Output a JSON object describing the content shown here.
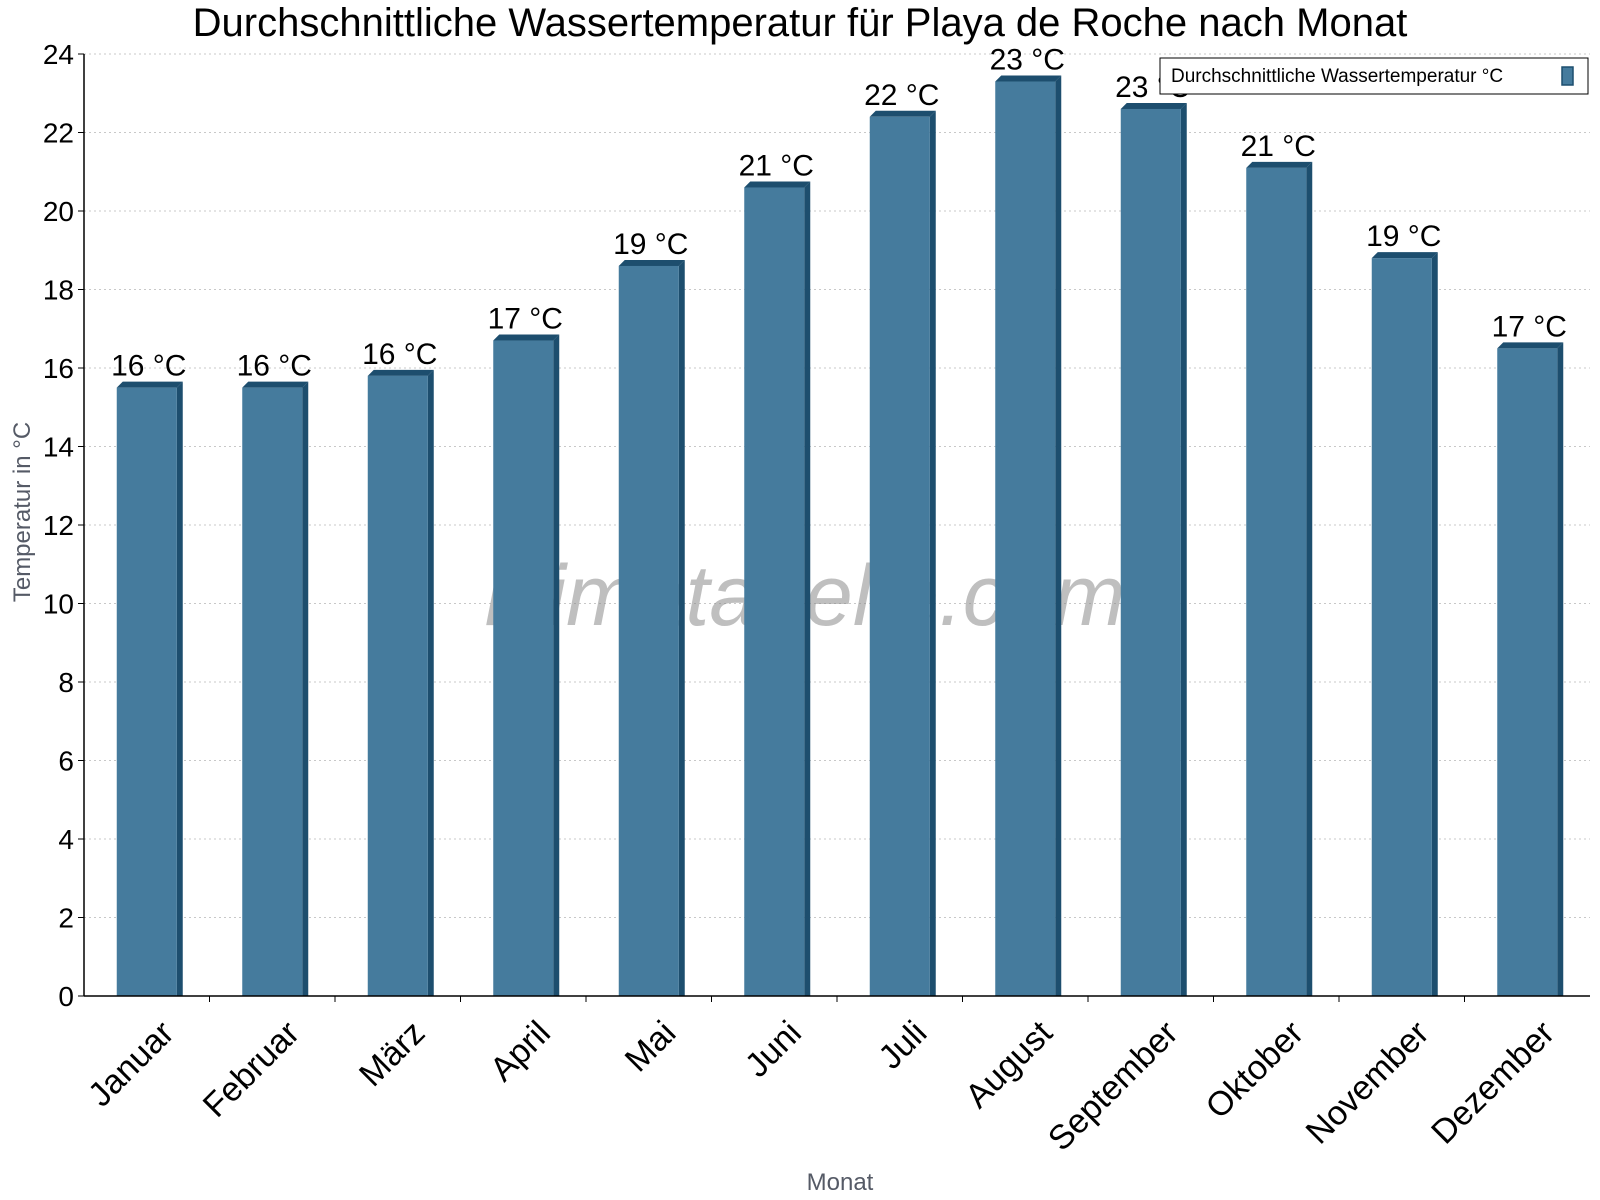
{
  "chart_data": {
    "type": "bar",
    "title": "Durchschnittliche Wassertemperatur für Playa de Roche nach Monat",
    "xlabel": "Monat",
    "ylabel": "Temperatur in °C",
    "categories": [
      "Januar",
      "Februar",
      "März",
      "April",
      "Mai",
      "Juni",
      "Juli",
      "August",
      "September",
      "Oktober",
      "November",
      "Dezember"
    ],
    "series": [
      {
        "name": "Durchschnittliche Wassertemperatur °C",
        "values": [
          15.5,
          15.5,
          15.8,
          16.7,
          18.6,
          20.6,
          22.4,
          23.3,
          22.6,
          21.1,
          18.8,
          16.5
        ],
        "data_labels": [
          "16 °C",
          "16 °C",
          "16 °C",
          "17 °C",
          "19 °C",
          "21 °C",
          "22 °C",
          "23 °C",
          "23 °C",
          "21 °C",
          "19 °C",
          "17 °C"
        ]
      }
    ],
    "ylim": [
      0,
      24
    ],
    "yticks": [
      0,
      2,
      4,
      6,
      8,
      10,
      12,
      14,
      16,
      18,
      20,
      22,
      24
    ],
    "grid": true,
    "legend_position": "top-right",
    "colors": {
      "bar_face": "#457b9d",
      "bar_side": "#1d4e6e",
      "grid": "#c8c8c8"
    }
  },
  "watermark": "klimatabelle.com"
}
